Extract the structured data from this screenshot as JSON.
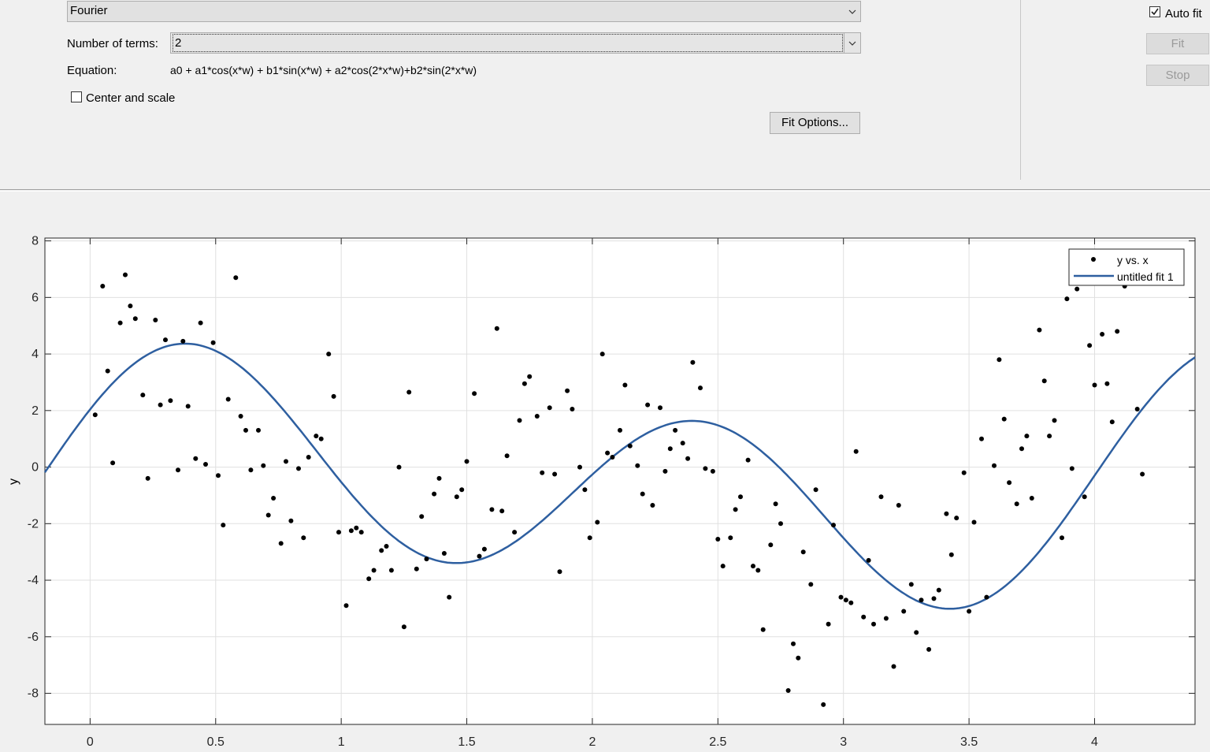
{
  "fit_panel": {
    "fit_type": "Fourier",
    "terms_label": "Number of terms:",
    "terms_value": "2",
    "equation_label": "Equation:",
    "equation": "a0 + a1*cos(x*w) + b1*sin(x*w) + a2*cos(2*x*w)+b2*sin(2*x*w)",
    "center_scale_label": "Center and scale",
    "center_scale_checked": false,
    "fit_options_label": "Fit Options..."
  },
  "side_panel": {
    "auto_fit_label": "Auto fit",
    "auto_fit_checked": true,
    "fit_label": "Fit",
    "stop_label": "Stop"
  },
  "chart_data": {
    "type": "scatter",
    "ylabel": "y",
    "xlim": [
      -0.18,
      4.4
    ],
    "ylim": [
      -9.1,
      8.1
    ],
    "grid": true,
    "legend_position": "top-right",
    "x_ticks": [
      0,
      0.5,
      1,
      1.5,
      2,
      2.5,
      3,
      3.5,
      4
    ],
    "x_tick_labels": [
      "0",
      "0.5",
      "1",
      "1.5",
      "2",
      "2.5",
      "3",
      "3.5",
      "4"
    ],
    "y_ticks": [
      8,
      6,
      4,
      2,
      0,
      -2,
      -4,
      -6,
      -8
    ],
    "y_tick_labels": [
      "8",
      "6",
      "4",
      "2",
      "0",
      "-2",
      "-4",
      "-6",
      "-8"
    ],
    "series": [
      {
        "name": "y vs. x",
        "kind": "points",
        "color": "#000000",
        "points": [
          [
            0.02,
            1.85
          ],
          [
            0.05,
            6.4
          ],
          [
            0.07,
            3.4
          ],
          [
            0.09,
            0.15
          ],
          [
            0.12,
            5.1
          ],
          [
            0.14,
            6.8
          ],
          [
            0.16,
            5.7
          ],
          [
            0.18,
            5.25
          ],
          [
            0.21,
            2.55
          ],
          [
            0.23,
            -0.4
          ],
          [
            0.26,
            5.2
          ],
          [
            0.28,
            2.2
          ],
          [
            0.3,
            4.5
          ],
          [
            0.32,
            2.35
          ],
          [
            0.35,
            -0.1
          ],
          [
            0.37,
            4.45
          ],
          [
            0.39,
            2.15
          ],
          [
            0.42,
            0.3
          ],
          [
            0.44,
            5.1
          ],
          [
            0.46,
            0.1
          ],
          [
            0.49,
            4.4
          ],
          [
            0.51,
            -0.3
          ],
          [
            0.53,
            -2.05
          ],
          [
            0.55,
            2.4
          ],
          [
            0.58,
            6.7
          ],
          [
            0.6,
            1.8
          ],
          [
            0.62,
            1.3
          ],
          [
            0.64,
            -0.1
          ],
          [
            0.67,
            1.3
          ],
          [
            0.69,
            0.05
          ],
          [
            0.71,
            -1.7
          ],
          [
            0.73,
            -1.1
          ],
          [
            0.76,
            -2.7
          ],
          [
            0.78,
            0.2
          ],
          [
            0.8,
            -1.9
          ],
          [
            0.83,
            -0.05
          ],
          [
            0.85,
            -2.5
          ],
          [
            0.87,
            0.35
          ],
          [
            0.9,
            1.1
          ],
          [
            0.92,
            1.0
          ],
          [
            0.95,
            4.0
          ],
          [
            0.97,
            2.5
          ],
          [
            0.99,
            -2.3
          ],
          [
            1.02,
            -4.9
          ],
          [
            1.04,
            -2.25
          ],
          [
            1.06,
            -2.15
          ],
          [
            1.08,
            -2.3
          ],
          [
            1.11,
            -3.95
          ],
          [
            1.13,
            -3.65
          ],
          [
            1.16,
            -2.95
          ],
          [
            1.18,
            -2.8
          ],
          [
            1.2,
            -3.65
          ],
          [
            1.23,
            0.0
          ],
          [
            1.25,
            -5.65
          ],
          [
            1.27,
            2.65
          ],
          [
            1.3,
            -3.6
          ],
          [
            1.32,
            -1.75
          ],
          [
            1.34,
            -3.25
          ],
          [
            1.37,
            -0.95
          ],
          [
            1.39,
            -0.4
          ],
          [
            1.41,
            -3.05
          ],
          [
            1.43,
            -4.6
          ],
          [
            1.46,
            -1.05
          ],
          [
            1.48,
            -0.8
          ],
          [
            1.5,
            0.2
          ],
          [
            1.53,
            2.6
          ],
          [
            1.55,
            -3.15
          ],
          [
            1.57,
            -2.9
          ],
          [
            1.6,
            -1.5
          ],
          [
            1.62,
            4.9
          ],
          [
            1.64,
            -1.55
          ],
          [
            1.66,
            0.4
          ],
          [
            1.69,
            -2.3
          ],
          [
            1.71,
            1.65
          ],
          [
            1.73,
            2.95
          ],
          [
            1.75,
            3.2
          ],
          [
            1.78,
            1.8
          ],
          [
            1.8,
            -0.2
          ],
          [
            1.83,
            2.1
          ],
          [
            1.85,
            -0.25
          ],
          [
            1.87,
            -3.7
          ],
          [
            1.9,
            2.7
          ],
          [
            1.92,
            2.05
          ],
          [
            1.95,
            0.0
          ],
          [
            1.97,
            -0.8
          ],
          [
            1.99,
            -2.5
          ],
          [
            2.02,
            -1.95
          ],
          [
            2.04,
            4.0
          ],
          [
            2.06,
            0.5
          ],
          [
            2.08,
            0.35
          ],
          [
            2.11,
            1.3
          ],
          [
            2.13,
            2.9
          ],
          [
            2.15,
            0.75
          ],
          [
            2.18,
            0.05
          ],
          [
            2.2,
            -0.95
          ],
          [
            2.22,
            2.2
          ],
          [
            2.24,
            -1.35
          ],
          [
            2.27,
            2.1
          ],
          [
            2.29,
            -0.15
          ],
          [
            2.31,
            0.65
          ],
          [
            2.33,
            1.3
          ],
          [
            2.36,
            0.85
          ],
          [
            2.38,
            0.3
          ],
          [
            2.4,
            3.7
          ],
          [
            2.43,
            2.8
          ],
          [
            2.45,
            -0.05
          ],
          [
            2.48,
            -0.15
          ],
          [
            2.5,
            -2.55
          ],
          [
            2.52,
            -3.5
          ],
          [
            2.55,
            -2.5
          ],
          [
            2.57,
            -1.5
          ],
          [
            2.59,
            -1.05
          ],
          [
            2.62,
            0.25
          ],
          [
            2.64,
            -3.5
          ],
          [
            2.66,
            -3.65
          ],
          [
            2.68,
            -5.75
          ],
          [
            2.71,
            -2.75
          ],
          [
            2.73,
            -1.3
          ],
          [
            2.75,
            -2.0
          ],
          [
            2.78,
            -7.9
          ],
          [
            2.8,
            -6.25
          ],
          [
            2.82,
            -6.75
          ],
          [
            2.84,
            -3.0
          ],
          [
            2.87,
            -4.15
          ],
          [
            2.89,
            -0.8
          ],
          [
            2.92,
            -8.4
          ],
          [
            2.94,
            -5.55
          ],
          [
            2.96,
            -2.05
          ],
          [
            2.99,
            -4.6
          ],
          [
            3.01,
            -4.7
          ],
          [
            3.03,
            -4.8
          ],
          [
            3.05,
            0.55
          ],
          [
            3.08,
            -5.3
          ],
          [
            3.1,
            -3.3
          ],
          [
            3.12,
            -5.55
          ],
          [
            3.15,
            -1.05
          ],
          [
            3.17,
            -5.35
          ],
          [
            3.2,
            -7.05
          ],
          [
            3.22,
            -1.35
          ],
          [
            3.24,
            -5.1
          ],
          [
            3.27,
            -4.15
          ],
          [
            3.29,
            -5.85
          ],
          [
            3.31,
            -4.7
          ],
          [
            3.34,
            -6.45
          ],
          [
            3.36,
            -4.65
          ],
          [
            3.38,
            -4.35
          ],
          [
            3.41,
            -1.65
          ],
          [
            3.43,
            -3.1
          ],
          [
            3.45,
            -1.8
          ],
          [
            3.48,
            -0.2
          ],
          [
            3.5,
            -5.1
          ],
          [
            3.52,
            -1.95
          ],
          [
            3.55,
            1.0
          ],
          [
            3.57,
            -4.6
          ],
          [
            3.6,
            0.05
          ],
          [
            3.62,
            3.8
          ],
          [
            3.64,
            1.7
          ],
          [
            3.66,
            -0.55
          ],
          [
            3.69,
            -1.3
          ],
          [
            3.71,
            0.65
          ],
          [
            3.73,
            1.1
          ],
          [
            3.75,
            -1.1
          ],
          [
            3.78,
            4.85
          ],
          [
            3.8,
            3.05
          ],
          [
            3.82,
            1.1
          ],
          [
            3.84,
            1.65
          ],
          [
            3.87,
            -2.5
          ],
          [
            3.89,
            5.95
          ],
          [
            3.91,
            -0.05
          ],
          [
            3.93,
            6.3
          ],
          [
            3.96,
            -1.05
          ],
          [
            3.98,
            4.3
          ],
          [
            4.0,
            2.9
          ],
          [
            4.03,
            4.7
          ],
          [
            4.05,
            2.95
          ],
          [
            4.07,
            1.6
          ],
          [
            4.09,
            4.8
          ],
          [
            4.12,
            6.4
          ],
          [
            4.17,
            2.05
          ],
          [
            4.19,
            -0.25
          ]
        ]
      },
      {
        "name": "untitled fit 1",
        "kind": "line",
        "color": "#2e5fa0",
        "fit": {
          "a0": -0.58,
          "a1": 0.79,
          "b1": 1.38,
          "a2": 1.83,
          "b2": 3.05,
          "w": 1.5
        }
      }
    ]
  }
}
